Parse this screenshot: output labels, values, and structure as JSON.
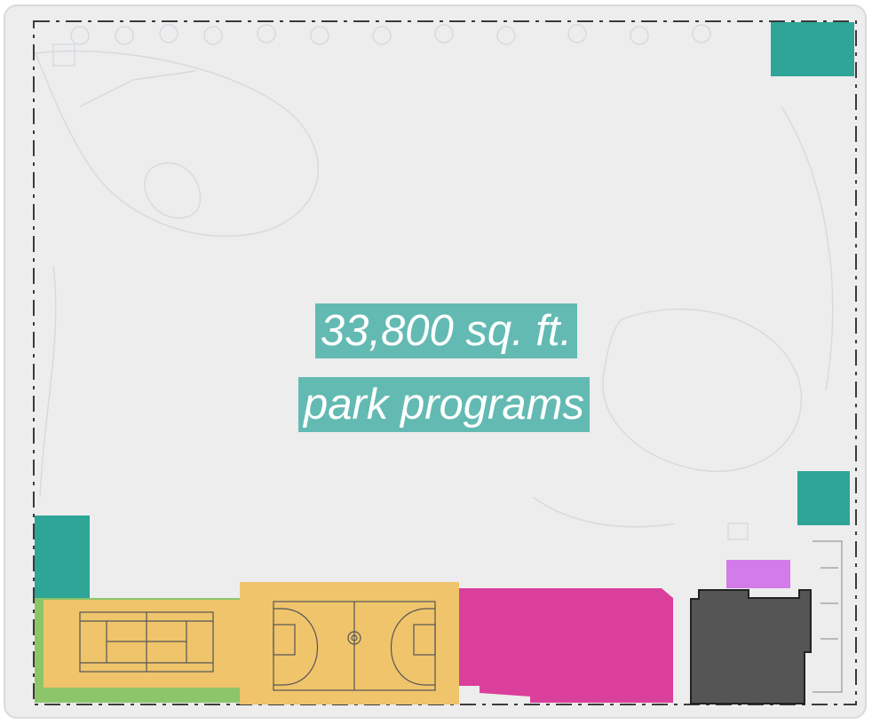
{
  "label": {
    "area": "33,800 sq. ft.",
    "program": "park programs"
  },
  "colors": {
    "background_panel": "#ededed",
    "boundary_line": "#3a3a3a",
    "teal_block": "#2ea597",
    "label_fill": "#63bab3",
    "court_yellow": "#efc46b",
    "green_strip": "#8cc56a",
    "magenta": "#db3f9c",
    "violet": "#d27be9",
    "dark_building": "#555555"
  },
  "icons": [
    "tennis-court-icon",
    "basketball-court-icon"
  ]
}
